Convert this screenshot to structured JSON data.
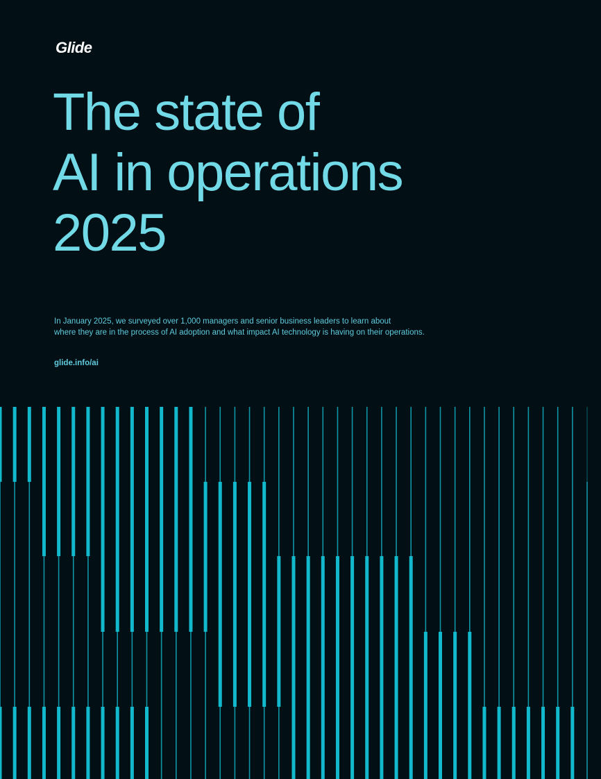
{
  "brand": {
    "logo": "Glide"
  },
  "title": {
    "lines": [
      "The state of",
      "AI in operations",
      "2025"
    ]
  },
  "intro": {
    "lines": [
      "In January 2025, we surveyed over 1,000 managers and senior business leaders to learn about",
      "where they are in the process of AI adoption and what impact AI technology is having on their operations."
    ]
  },
  "link": {
    "label": "glide.info/ai"
  },
  "colors": {
    "background": "#020f15",
    "accent": "#72d9e6",
    "line": "#12b8cc",
    "logo": "#ffffff"
  }
}
